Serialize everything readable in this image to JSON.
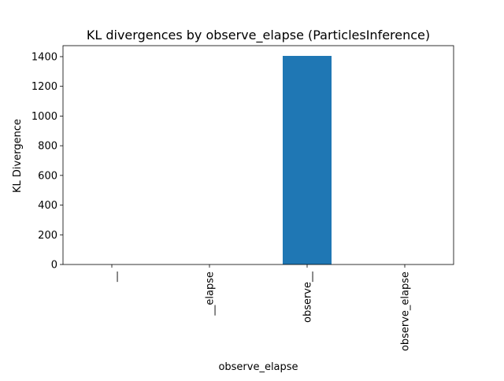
{
  "chart_data": {
    "type": "bar",
    "title": "KL divergences by observe_elapse (ParticlesInference)",
    "xlabel": "observe_elapse",
    "ylabel": "KL Divergence",
    "categories": [
      "__",
      "__elapse",
      "observe__",
      "observe_elapse"
    ],
    "values": [
      0,
      0,
      1405,
      0
    ],
    "ylim": [
      0,
      1474
    ],
    "yticks": [
      0,
      200,
      400,
      600,
      800,
      1000,
      1200,
      1400
    ],
    "bar_color": "#1f77b4",
    "grid": false,
    "legend": false,
    "xtick_rotation": "vertical"
  }
}
